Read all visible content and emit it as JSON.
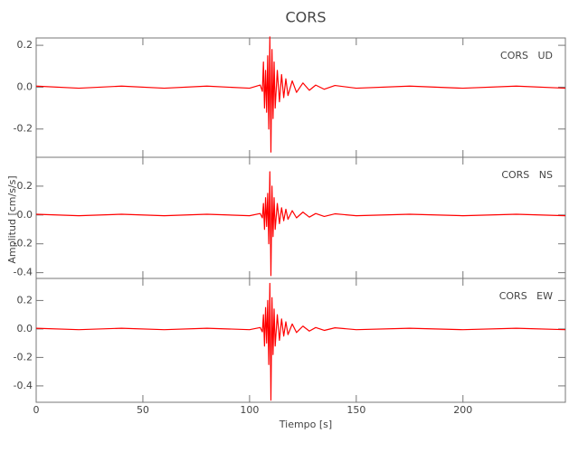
{
  "chart_data": [
    {
      "type": "line",
      "title": "CORS",
      "annotation": "CORS   UD",
      "x": [
        0,
        20,
        40,
        60,
        80,
        100,
        105,
        106,
        106.5,
        107,
        107.5,
        108,
        108.5,
        109,
        109.5,
        110,
        110.5,
        111,
        111.5,
        112,
        113,
        114,
        115,
        116,
        117,
        118,
        120,
        122,
        125,
        128,
        131,
        135,
        140,
        150,
        175,
        200,
        225,
        248
      ],
      "series": [
        {
          "name": "UD",
          "color": "#ff0000",
          "values": [
            0.005,
            -0.005,
            0.005,
            -0.005,
            0.005,
            -0.005,
            0.01,
            -0.02,
            0.12,
            -0.1,
            0.08,
            -0.12,
            0.15,
            -0.2,
            0.24,
            -0.31,
            0.18,
            -0.15,
            0.12,
            -0.1,
            0.08,
            -0.07,
            0.06,
            -0.05,
            0.04,
            -0.04,
            0.03,
            -0.025,
            0.02,
            -0.015,
            0.01,
            -0.01,
            0.008,
            -0.005,
            0.005,
            -0.005,
            0.005,
            -0.005
          ]
        }
      ],
      "xlim": [
        0,
        248
      ],
      "xticks": [
        0,
        50,
        100,
        150,
        200
      ],
      "ylim": [
        -0.335,
        0.235
      ],
      "yticks": [
        -0.2,
        {
          "value": 0,
          "label": "0.0"
        },
        0.2
      ]
    },
    {
      "type": "line",
      "annotation": "CORS   NS",
      "ylabel": "Amplitud [cm/s/s]",
      "x": [
        0,
        20,
        40,
        60,
        80,
        100,
        105,
        106,
        106.5,
        107,
        107.5,
        108,
        108.5,
        109,
        109.5,
        110,
        110.5,
        111,
        111.5,
        112,
        113,
        114,
        115,
        116,
        117,
        118,
        120,
        122,
        125,
        128,
        131,
        135,
        140,
        150,
        175,
        200,
        225,
        248
      ],
      "series": [
        {
          "name": "NS",
          "color": "#ff0000",
          "values": [
            0.005,
            -0.005,
            0.005,
            -0.005,
            0.005,
            -0.005,
            0.01,
            -0.02,
            0.08,
            -0.1,
            0.12,
            -0.08,
            0.15,
            -0.2,
            0.3,
            -0.42,
            0.2,
            -0.15,
            0.12,
            -0.1,
            0.08,
            -0.06,
            0.05,
            -0.04,
            0.04,
            -0.03,
            0.03,
            -0.02,
            0.02,
            -0.015,
            0.01,
            -0.01,
            0.008,
            -0.005,
            0.005,
            -0.005,
            0.005,
            -0.005
          ]
        }
      ],
      "xlim": [
        0,
        248
      ],
      "xticks": [
        0,
        50,
        100,
        150,
        200
      ],
      "ylim": [
        -0.44,
        0.4
      ],
      "yticks": [
        -0.4,
        -0.2,
        {
          "value": 0,
          "label": "0.0"
        },
        0.2
      ]
    },
    {
      "type": "line",
      "annotation": "CORS   EW",
      "xlabel": "Tiempo [s]",
      "x": [
        0,
        20,
        40,
        60,
        80,
        100,
        105,
        106,
        106.5,
        107,
        107.5,
        108,
        108.5,
        109,
        109.5,
        110,
        110.5,
        111,
        111.5,
        112,
        113,
        114,
        115,
        116,
        117,
        118,
        120,
        122,
        125,
        128,
        131,
        135,
        140,
        150,
        175,
        200,
        225,
        248
      ],
      "series": [
        {
          "name": "EW",
          "color": "#ff0000",
          "values": [
            0.005,
            -0.005,
            0.005,
            -0.005,
            0.005,
            -0.005,
            0.01,
            -0.02,
            0.1,
            -0.12,
            0.15,
            -0.1,
            0.2,
            -0.25,
            0.32,
            -0.5,
            0.22,
            -0.18,
            0.14,
            -0.12,
            0.1,
            -0.08,
            0.07,
            -0.05,
            0.05,
            -0.04,
            0.035,
            -0.025,
            0.02,
            -0.015,
            0.01,
            -0.01,
            0.008,
            -0.005,
            0.005,
            -0.005,
            0.005,
            -0.005
          ]
        }
      ],
      "xlim": [
        0,
        248
      ],
      "xticks": [
        0,
        50,
        100,
        150,
        200
      ],
      "ylim": [
        -0.515,
        0.355
      ],
      "yticks": [
        -0.4,
        -0.2,
        {
          "value": 0,
          "label": "0.0"
        },
        0.2
      ]
    }
  ]
}
